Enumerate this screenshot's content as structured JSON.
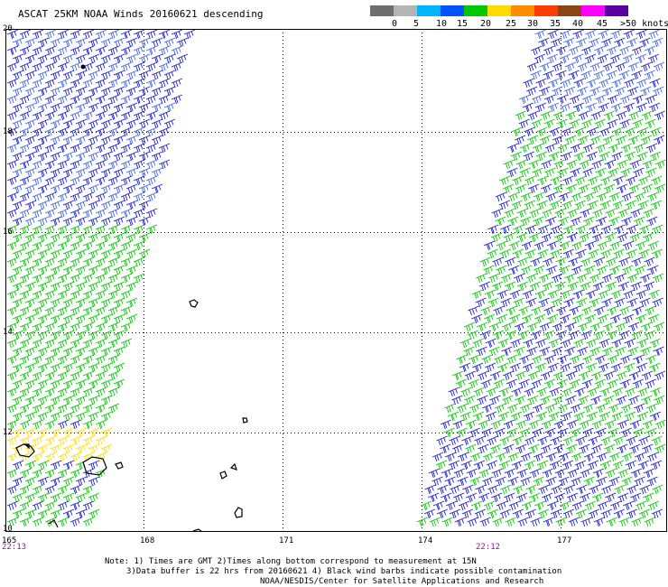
{
  "title": "ASCAT 25KM NOAA Winds 20160621 descending",
  "speed_scale": {
    "labels": [
      "0",
      "5",
      "10",
      "15",
      "20",
      "25",
      "30",
      "35",
      "40",
      "45",
      ">50 knots"
    ],
    "colors": [
      "#6e6e6e",
      "#b4b4b4",
      "#00b4ff",
      "#0050ff",
      "#00c800",
      "#ffdc00",
      "#ff8c00",
      "#ff3c00",
      "#8b4513",
      "#ff00ff",
      "#5a00a0"
    ]
  },
  "axis": {
    "lat_labels": [
      "20",
      "18",
      "16",
      "14",
      "12",
      "10"
    ],
    "lon_labels": [
      "165",
      "168",
      "171",
      "174",
      "177"
    ]
  },
  "pass_times": {
    "left": "22:13",
    "right": "22:12"
  },
  "notes": [
    "Note: 1) Times are GMT 2)Times along bottom correspond to measurement at 15N",
    "3)Data buffer is 22 hrs from 20160621 4) Black wind barbs indicate possible contamination",
    "NOAA/NESDIS/Center for Satellite Applications and Research"
  ],
  "barb_colors": {
    "blue": "#1a1ad2",
    "light_blue": "#3c64e6",
    "green": "#00c800",
    "yellow": "#ffdc00"
  }
}
